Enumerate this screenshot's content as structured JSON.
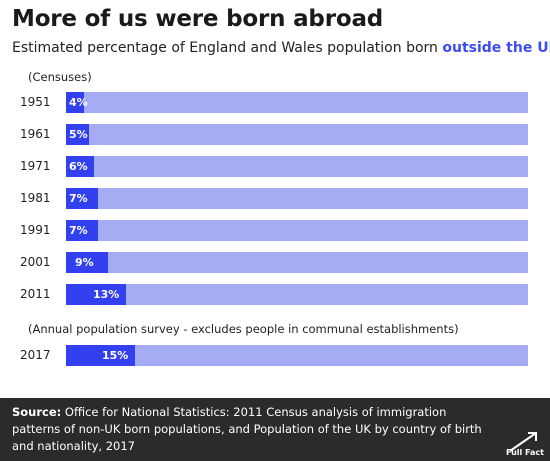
{
  "chart_data": {
    "type": "bar",
    "title": "More of us were born abroad",
    "subtitle_prefix": "Estimated percentage of England and Wales population born ",
    "subtitle_highlight": "outside the UK",
    "group_notes": [
      "(Censuses)",
      "(Annual population survey - excludes people in communal establishments)"
    ],
    "categories": [
      "1951",
      "1961",
      "1971",
      "1981",
      "1991",
      "2001",
      "2011",
      "2017"
    ],
    "values": [
      4,
      5,
      6,
      7,
      7,
      9,
      13,
      15
    ],
    "value_labels": [
      "4%",
      "5%",
      "6%",
      "7%",
      "7%",
      "9%",
      "13%",
      "15%"
    ],
    "ylim": [
      0,
      100
    ],
    "colors": {
      "fill": "#3340f0",
      "track": "#a6acf4",
      "highlight": "#3b4cf2"
    }
  },
  "footer": {
    "source_label": "Source:",
    "source_text": " Office for National Statistics: 2011 Census analysis of immigration patterns of non-UK born populations, and Population of the UK by country of birth and nationality, 2017",
    "logo_text": "Full Fact"
  }
}
